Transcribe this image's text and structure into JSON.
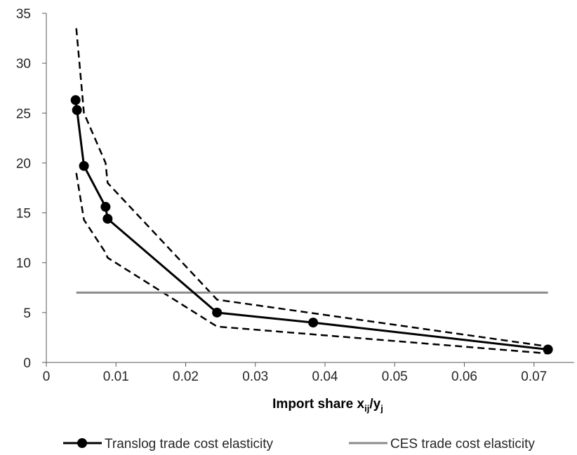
{
  "chart_data": {
    "type": "line",
    "xlabel": {
      "prefix": "Import share",
      "x_letter": "x",
      "x_sub": "ij",
      "slash": "/",
      "y_letter": "y",
      "y_sub": "j"
    },
    "ylabel": "",
    "xlim": [
      0,
      0.072
    ],
    "ylim": [
      0,
      35
    ],
    "x_ticks": [
      "0",
      "0.01",
      "0.02",
      "0.03",
      "0.04",
      "0.05",
      "0.06",
      "0.07"
    ],
    "y_ticks": [
      "0",
      "5",
      "10",
      "15",
      "20",
      "25",
      "30",
      "35"
    ],
    "grid": false,
    "legend_position": "bottom",
    "series": [
      {
        "name": "Translog trade cost elasticity",
        "color": "#000000",
        "marker": "circle",
        "x": [
          0.0042,
          0.0044,
          0.0054,
          0.0085,
          0.0088,
          0.0245,
          0.0383,
          0.072
        ],
        "y": [
          26.3,
          25.3,
          19.7,
          15.6,
          14.4,
          5.0,
          4.0,
          1.3
        ]
      },
      {
        "name": "CES trade cost elasticity",
        "color": "#8c8c8c",
        "marker": "none",
        "x": [
          0.0043,
          0.072
        ],
        "y": [
          7.0,
          7.0
        ]
      }
    ],
    "confidence_band": {
      "style": "dashed",
      "color": "#000000",
      "upper": {
        "x": [
          0.0043,
          0.0054,
          0.0085,
          0.0088,
          0.0245,
          0.072
        ],
        "y": [
          33.5,
          25.0,
          20.0,
          18.0,
          6.3,
          1.6
        ]
      },
      "lower": {
        "x": [
          0.0043,
          0.0054,
          0.0085,
          0.0088,
          0.0245,
          0.072
        ],
        "y": [
          19.0,
          14.3,
          11.0,
          10.5,
          3.6,
          0.9
        ]
      }
    }
  }
}
